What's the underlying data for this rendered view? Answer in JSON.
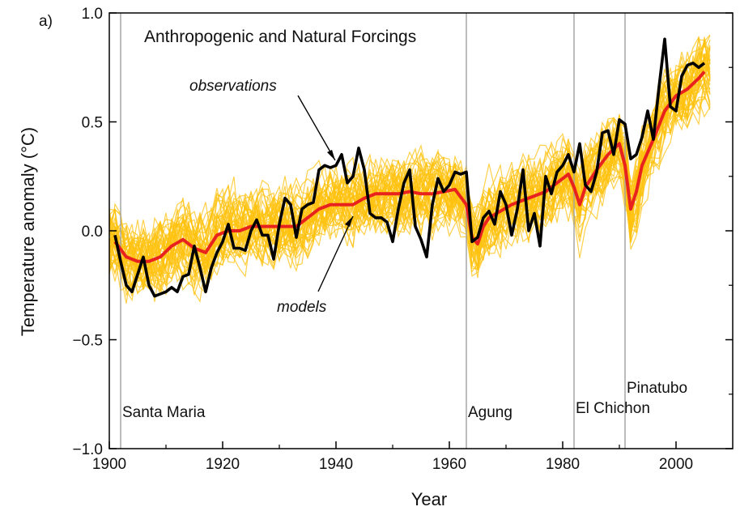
{
  "chart_data": {
    "type": "line",
    "panel_label": "a)",
    "title": "Anthropogenic and Natural Forcings",
    "xlabel": "Year",
    "ylabel": "Temperature anomaly (°C)",
    "xlim": [
      1900,
      2010
    ],
    "ylim": [
      -1.0,
      1.0
    ],
    "x_ticks": [
      1900,
      1920,
      1940,
      1960,
      1980,
      2000
    ],
    "y_ticks": [
      {
        "value": -1.0,
        "label": "−1.0"
      },
      {
        "value": -0.5,
        "label": "−0.5"
      },
      {
        "value": 0.0,
        "label": "0.0"
      },
      {
        "value": 0.5,
        "label": "0.5"
      },
      {
        "value": 1.0,
        "label": "1.0"
      }
    ],
    "grid": false,
    "colors": {
      "observations": "#000000",
      "models": "#e8231e",
      "ensemble": "#ffc20e",
      "volcano_lines": "#a0a0a0"
    },
    "series": [
      {
        "name": "observations",
        "x": [
          1901,
          1902,
          1903,
          1904,
          1905,
          1906,
          1907,
          1908,
          1909,
          1910,
          1911,
          1912,
          1913,
          1914,
          1915,
          1916,
          1917,
          1918,
          1919,
          1920,
          1921,
          1922,
          1923,
          1924,
          1925,
          1926,
          1927,
          1928,
          1929,
          1930,
          1931,
          1932,
          1933,
          1934,
          1935,
          1936,
          1937,
          1938,
          1939,
          1940,
          1941,
          1942,
          1943,
          1944,
          1945,
          1946,
          1947,
          1948,
          1949,
          1950,
          1951,
          1952,
          1953,
          1954,
          1955,
          1956,
          1957,
          1958,
          1959,
          1960,
          1961,
          1962,
          1963,
          1964,
          1965,
          1966,
          1967,
          1968,
          1969,
          1970,
          1971,
          1972,
          1973,
          1974,
          1975,
          1976,
          1977,
          1978,
          1979,
          1980,
          1981,
          1982,
          1983,
          1984,
          1985,
          1986,
          1987,
          1988,
          1989,
          1990,
          1991,
          1992,
          1993,
          1994,
          1995,
          1996,
          1997,
          1998,
          1999,
          2000,
          2001,
          2002,
          2003,
          2004,
          2005
        ],
        "y": [
          -0.02,
          -0.14,
          -0.25,
          -0.28,
          -0.2,
          -0.12,
          -0.25,
          -0.3,
          -0.29,
          -0.28,
          -0.26,
          -0.28,
          -0.21,
          -0.2,
          -0.07,
          -0.17,
          -0.28,
          -0.17,
          -0.1,
          -0.05,
          0.03,
          -0.08,
          -0.08,
          -0.09,
          0.0,
          0.05,
          -0.02,
          -0.02,
          -0.13,
          0.03,
          0.15,
          0.12,
          -0.03,
          0.1,
          0.12,
          0.13,
          0.28,
          0.3,
          0.29,
          0.3,
          0.35,
          0.22,
          0.25,
          0.38,
          0.28,
          0.08,
          0.06,
          0.06,
          0.04,
          -0.05,
          0.1,
          0.22,
          0.28,
          0.02,
          -0.04,
          -0.12,
          0.12,
          0.24,
          0.18,
          0.21,
          0.27,
          0.26,
          0.27,
          -0.05,
          -0.03,
          0.06,
          0.09,
          0.03,
          0.18,
          0.12,
          -0.02,
          0.1,
          0.28,
          0.0,
          0.08,
          -0.07,
          0.25,
          0.17,
          0.27,
          0.3,
          0.35,
          0.27,
          0.4,
          0.21,
          0.18,
          0.27,
          0.45,
          0.46,
          0.35,
          0.51,
          0.49,
          0.33,
          0.35,
          0.43,
          0.55,
          0.42,
          0.66,
          0.88,
          0.57,
          0.55,
          0.71,
          0.76,
          0.77,
          0.75,
          0.77
        ]
      },
      {
        "name": "models",
        "x": [
          1901,
          1903,
          1905,
          1907,
          1909,
          1911,
          1913,
          1915,
          1917,
          1919,
          1921,
          1923,
          1925,
          1927,
          1929,
          1931,
          1933,
          1935,
          1937,
          1939,
          1941,
          1943,
          1945,
          1947,
          1949,
          1951,
          1953,
          1955,
          1957,
          1959,
          1961,
          1963,
          1964,
          1965,
          1966,
          1967,
          1969,
          1971,
          1973,
          1975,
          1977,
          1979,
          1981,
          1982,
          1983,
          1984,
          1986,
          1988,
          1990,
          1991,
          1992,
          1993,
          1994,
          1996,
          1998,
          2000,
          2002,
          2004,
          2005
        ],
        "y": [
          -0.05,
          -0.12,
          -0.14,
          -0.14,
          -0.12,
          -0.07,
          -0.04,
          -0.08,
          -0.1,
          -0.02,
          0.0,
          0.0,
          0.02,
          0.02,
          0.02,
          0.02,
          0.02,
          0.06,
          0.1,
          0.12,
          0.12,
          0.12,
          0.15,
          0.17,
          0.17,
          0.17,
          0.18,
          0.17,
          0.17,
          0.18,
          0.19,
          0.12,
          -0.03,
          -0.06,
          0.02,
          0.06,
          0.09,
          0.12,
          0.14,
          0.16,
          0.18,
          0.22,
          0.26,
          0.2,
          0.12,
          0.2,
          0.28,
          0.35,
          0.4,
          0.3,
          0.1,
          0.18,
          0.3,
          0.42,
          0.55,
          0.62,
          0.65,
          0.7,
          0.73
        ]
      }
    ],
    "volcanoes": [
      {
        "name": "Santa Maria",
        "year": 1902
      },
      {
        "name": "Agung",
        "year": 1963
      },
      {
        "name": "El Chichon",
        "year": 1982
      },
      {
        "name": "Pinatubo",
        "year": 1991
      }
    ],
    "annotations": {
      "observations_label": "observations",
      "models_label": "models"
    }
  }
}
